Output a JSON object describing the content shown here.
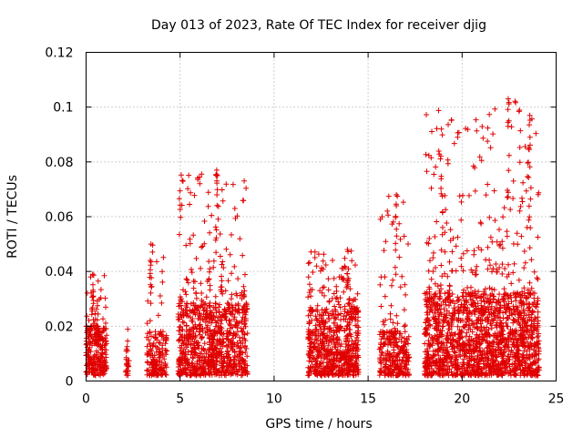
{
  "chart_data": {
    "type": "scatter",
    "title": "Day 013 of 2023, Rate Of TEC Index for receiver djig",
    "xlabel": "GPS time / hours",
    "ylabel": "ROTI / TECUs",
    "xlim": [
      0,
      25
    ],
    "ylim": [
      0,
      0.12
    ],
    "x_ticks": [
      0,
      5,
      10,
      15,
      20,
      25
    ],
    "x_tick_labels": [
      "0",
      "5",
      "10",
      "15",
      "20",
      "25"
    ],
    "y_ticks": [
      0,
      0.02,
      0.04,
      0.06,
      0.08,
      0.1,
      0.12
    ],
    "y_tick_labels": [
      "0",
      "0.02",
      "0.04",
      "0.06",
      "0.08",
      "0.1",
      "0.12"
    ],
    "grid": true,
    "marker": "+",
    "color": "#e00000",
    "series": [
      {
        "name": "ROTI",
        "clusters": [
          {
            "x": [
              0.0,
              1.1
            ],
            "base_max": 0.02,
            "peak": 0.039,
            "count": 260
          },
          {
            "x": [
              2.1,
              2.3
            ],
            "base_max": 0.012,
            "peak": 0.019,
            "count": 25
          },
          {
            "x": [
              3.2,
              4.3
            ],
            "base_max": 0.017,
            "peak": 0.05,
            "count": 160
          },
          {
            "x": [
              4.9,
              8.6
            ],
            "base_max": 0.028,
            "peak": 0.077,
            "count": 900
          },
          {
            "x": [
              11.8,
              14.5
            ],
            "base_max": 0.026,
            "peak": 0.048,
            "count": 650
          },
          {
            "x": [
              15.6,
              17.2
            ],
            "base_max": 0.018,
            "peak": 0.068,
            "count": 280
          },
          {
            "x": [
              18.0,
              24.1
            ],
            "base_max": 0.032,
            "peak": 0.103,
            "count": 1700
          }
        ],
        "peaks": [
          {
            "x": 0.35,
            "y": 0.039
          },
          {
            "x": 3.45,
            "y": 0.05
          },
          {
            "x": 6.95,
            "y": 0.077
          },
          {
            "x": 13.9,
            "y": 0.048
          },
          {
            "x": 16.5,
            "y": 0.068
          },
          {
            "x": 18.9,
            "y": 0.092
          },
          {
            "x": 22.45,
            "y": 0.103
          },
          {
            "x": 23.6,
            "y": 0.097
          }
        ]
      }
    ]
  }
}
